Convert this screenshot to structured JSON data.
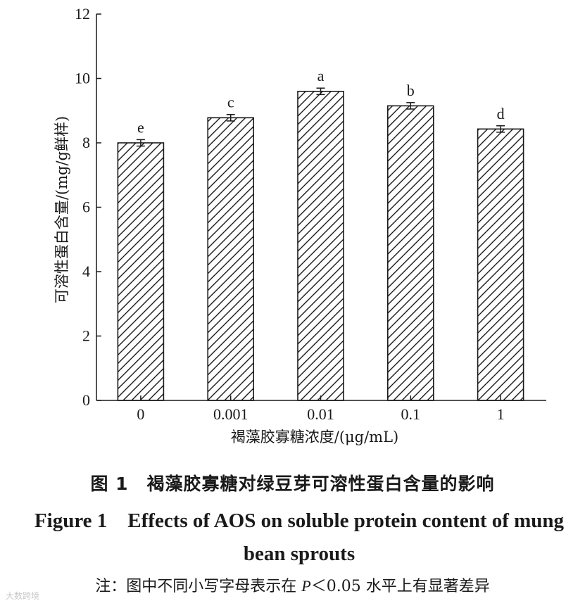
{
  "chart_data": {
    "type": "bar",
    "categories": [
      "0",
      "0.001",
      "0.01",
      "0.1",
      "1"
    ],
    "values": [
      8.0,
      8.78,
      9.6,
      9.15,
      8.43
    ],
    "errors": [
      0.1,
      0.1,
      0.1,
      0.1,
      0.1
    ],
    "significance_letters": [
      "e",
      "c",
      "a",
      "b",
      "d"
    ],
    "xlabel": "褐藻胶寡糖浓度/(μg/mL)",
    "ylabel": "可溶性蛋白含量/(mg/g鲜样)",
    "ylim": [
      0,
      12
    ],
    "yticks": [
      0,
      2,
      4,
      6,
      8,
      10,
      12
    ],
    "bar_fill": "hatched",
    "bar_color": "#1a1a1a",
    "grid": false,
    "legend": "none"
  },
  "caption": {
    "cn": "图 1　褐藻胶寡糖对绿豆芽可溶性蛋白含量的影响",
    "en": "Figure 1　Effects of AOS on soluble protein content of mung bean sprouts",
    "note_prefix": "注：图中不同小写字母表示在 ",
    "note_p": "P",
    "note_suffix": "＜0.05 水平上有显著差异"
  },
  "watermark": "大数跨境"
}
